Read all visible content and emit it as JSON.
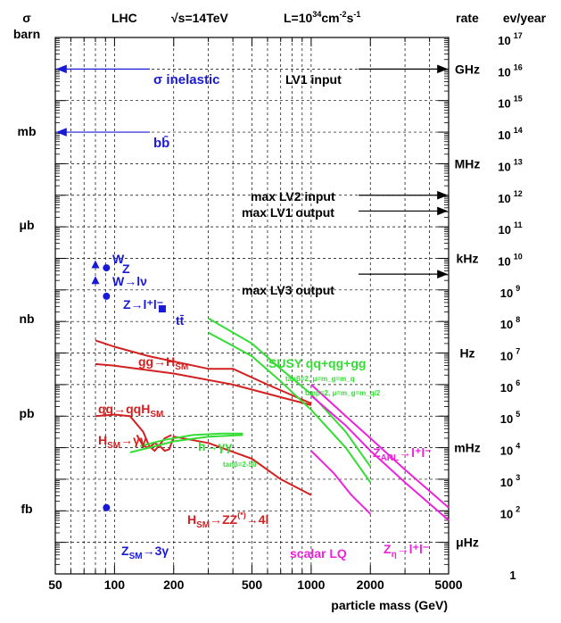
{
  "chart_data": {
    "type": "line",
    "x_scale": "log",
    "xlim": [
      50,
      5000
    ],
    "x_tick_labels": [
      "50",
      "100",
      "200",
      "500",
      "1000",
      "2000",
      "5000"
    ],
    "xlabel": "particle mass (GeV)",
    "header": {
      "left_axis": "σ",
      "collider": "LHC",
      "energy": "√s=14TeV",
      "luminosity": "L=10",
      "luminosity_exp": "34",
      "luminosity_unit1": "cm",
      "luminosity_exp2": "-2",
      "luminosity_unit2": "s",
      "luminosity_exp3": "-1",
      "rate": "rate",
      "events": "ev/year"
    },
    "left_labels": [
      "barn",
      "mb",
      "μb",
      "nb",
      "pb",
      "fb"
    ],
    "rate_labels": [
      "GHz",
      "MHz",
      "kHz",
      "Hz",
      "mHz",
      "μHz"
    ],
    "events_per_year": {
      "base": "10",
      "exponents": [
        "17",
        "16",
        "15",
        "14",
        "13",
        "12",
        "11",
        "10",
        "9",
        "8",
        "7",
        "6",
        "5",
        "4",
        "3",
        "2"
      ],
      "lowest": "1"
    },
    "annotations": {
      "sigma_inelastic": "σ inelastic",
      "bbbar": "bb̄",
      "lv1_input": "LV1 input",
      "max_lv2_input": "max LV2 input",
      "max_lv1_output": "max LV1 output",
      "max_lv3_output": "max LV3 output",
      "w": "W",
      "z": "Z",
      "w_lnu": "W→lν",
      "z_ll": "Z→l⁺l⁻",
      "ttbar": "tt̄",
      "gg_hsm": "gg→H",
      "gg_hsm_sub": "SM",
      "qq_qqhsm": "qq→qqH",
      "qq_qqhsm_sub": "SM",
      "hsm_gg": "H",
      "hsm_gg_sub": "SM",
      "hsm_gg_tail": "→γγ",
      "h_gg": "h→γγ",
      "tanb_h": "tanβ=2-50",
      "susy": "SUSY qq+qg+gg",
      "tanb_1": "tanβ=2, μ=m_g=m_q",
      "tanb_2": "tanβ=2, μ=m_g=m_q/2",
      "zarl_pre": "Z",
      "zarl_sub": "ARL",
      "zarl_tail": "→l⁺l⁻",
      "hsm_zz_pre": "H",
      "hsm_zz_sub": "SM",
      "hsm_zz_tail": "→ZZ",
      "hsm_zz_sup": "(*)",
      "hsm_zz_end": "→4l",
      "scalar_lq": "scalar LQ",
      "zeta_pre": "Z",
      "zeta_sub": "η",
      "zeta_tail": "→l⁺l⁻",
      "zsm_pre": "Z",
      "zsm_sub": "SM",
      "zsm_tail": "→3γ"
    },
    "colors": {
      "frame": "#000000",
      "grid": "#000000",
      "blue": "#1a1ad6",
      "red": "#d42020",
      "green": "#33dd33",
      "magenta": "#ee22dd"
    },
    "points": [
      {
        "label": "W",
        "x": 80,
        "decade": 9.8,
        "marker": "triangle"
      },
      {
        "label": "W→lν",
        "x": 80,
        "decade": 9.3,
        "marker": "triangle"
      },
      {
        "label": "Z",
        "x": 91,
        "decade": 9.7,
        "marker": "circle"
      },
      {
        "label": "Z→l⁺l⁻",
        "x": 91,
        "decade": 8.8,
        "marker": "circle"
      },
      {
        "label": "tt̄",
        "x": 175,
        "decade": 8.4,
        "marker": "square"
      },
      {
        "label": "Z_SM→3γ",
        "x": 91,
        "decade": 2.1,
        "marker": "circle"
      }
    ],
    "series": [
      {
        "name": "gg→H_SM",
        "color": "red",
        "points": [
          [
            80,
            7.4
          ],
          [
            100,
            7.2
          ],
          [
            150,
            6.9
          ],
          [
            300,
            6.5
          ],
          [
            400,
            6.5
          ],
          [
            600,
            6.0
          ],
          [
            1000,
            5.4
          ]
        ]
      },
      {
        "name": "qq→qqH_SM",
        "color": "red",
        "points": [
          [
            80,
            6.65
          ],
          [
            100,
            6.6
          ],
          [
            200,
            6.35
          ],
          [
            400,
            6.0
          ],
          [
            700,
            5.6
          ],
          [
            1000,
            5.35
          ]
        ]
      },
      {
        "name": "H_SM→γγ",
        "color": "red",
        "points": [
          [
            80,
            5.0
          ],
          [
            100,
            5.05
          ],
          [
            120,
            5.0
          ],
          [
            140,
            4.5
          ],
          [
            150,
            4.05
          ],
          [
            160,
            3.9
          ],
          [
            170,
            4.1
          ],
          [
            180,
            4.3
          ],
          [
            195,
            4.4
          ]
        ]
      },
      {
        "name": "H_SM→ZZ(*)→4l",
        "color": "red",
        "points": [
          [
            130,
            4.4
          ],
          [
            140,
            4.05
          ],
          [
            150,
            4.0
          ],
          [
            160,
            4.15
          ],
          [
            170,
            4.05
          ],
          [
            180,
            3.9
          ],
          [
            190,
            3.95
          ],
          [
            200,
            4.35
          ],
          [
            300,
            4.15
          ],
          [
            500,
            3.65
          ],
          [
            700,
            3.0
          ],
          [
            1000,
            2.5
          ]
        ]
      },
      {
        "name": "h→γγ",
        "color": "green",
        "points": [
          [
            120,
            3.85
          ],
          [
            150,
            4.0
          ],
          [
            200,
            4.2
          ],
          [
            300,
            4.35
          ],
          [
            450,
            4.4
          ]
        ]
      },
      {
        "name": "h→γγ",
        "color": "green",
        "points": [
          [
            135,
            4.05
          ],
          [
            180,
            4.25
          ],
          [
            250,
            4.4
          ],
          [
            350,
            4.45
          ],
          [
            450,
            4.45
          ]
        ]
      },
      {
        "name": "SUSY qq+qg+gg",
        "color": "green",
        "points": [
          [
            300,
            8.1
          ],
          [
            500,
            7.3
          ],
          [
            700,
            6.5
          ],
          [
            1000,
            5.7
          ],
          [
            1500,
            4.5
          ],
          [
            2000,
            3.4
          ]
        ]
      },
      {
        "name": "SUSY qq+qg+gg",
        "color": "green",
        "points": [
          [
            300,
            7.65
          ],
          [
            500,
            6.9
          ],
          [
            700,
            6.1
          ],
          [
            1000,
            5.2
          ],
          [
            1500,
            4.0
          ],
          [
            2000,
            2.9
          ]
        ]
      },
      {
        "name": "Z_ARL→l⁺l⁻",
        "color": "magenta",
        "points": [
          [
            1000,
            6.0
          ],
          [
            1500,
            5.0
          ],
          [
            2000,
            4.3
          ],
          [
            3000,
            3.3
          ],
          [
            5000,
            2.1
          ]
        ]
      },
      {
        "name": "Z_η→l⁺l⁻",
        "color": "magenta",
        "points": [
          [
            1000,
            5.65
          ],
          [
            1500,
            4.7
          ],
          [
            2000,
            3.9
          ],
          [
            3000,
            2.9
          ],
          [
            5000,
            1.7
          ]
        ]
      },
      {
        "name": "scalar LQ",
        "color": "magenta",
        "points": [
          [
            1000,
            3.9
          ],
          [
            1300,
            3.2
          ],
          [
            1600,
            2.5
          ],
          [
            2000,
            1.9
          ]
        ]
      }
    ],
    "horizontal_markers": [
      {
        "label": "σ inelastic",
        "decade": 16.0,
        "direction": "left"
      },
      {
        "label": "bb̄",
        "decade": 14.0,
        "direction": "left"
      },
      {
        "label": "LV1 input",
        "decade": 16.0,
        "direction": "right"
      },
      {
        "label": "max LV2 input",
        "decade": 12.0,
        "direction": "right"
      },
      {
        "label": "max LV1 output",
        "decade": 11.5,
        "direction": "right"
      },
      {
        "label": "max LV3 output",
        "decade": 9.5,
        "direction": "right"
      }
    ],
    "grid": true
  }
}
